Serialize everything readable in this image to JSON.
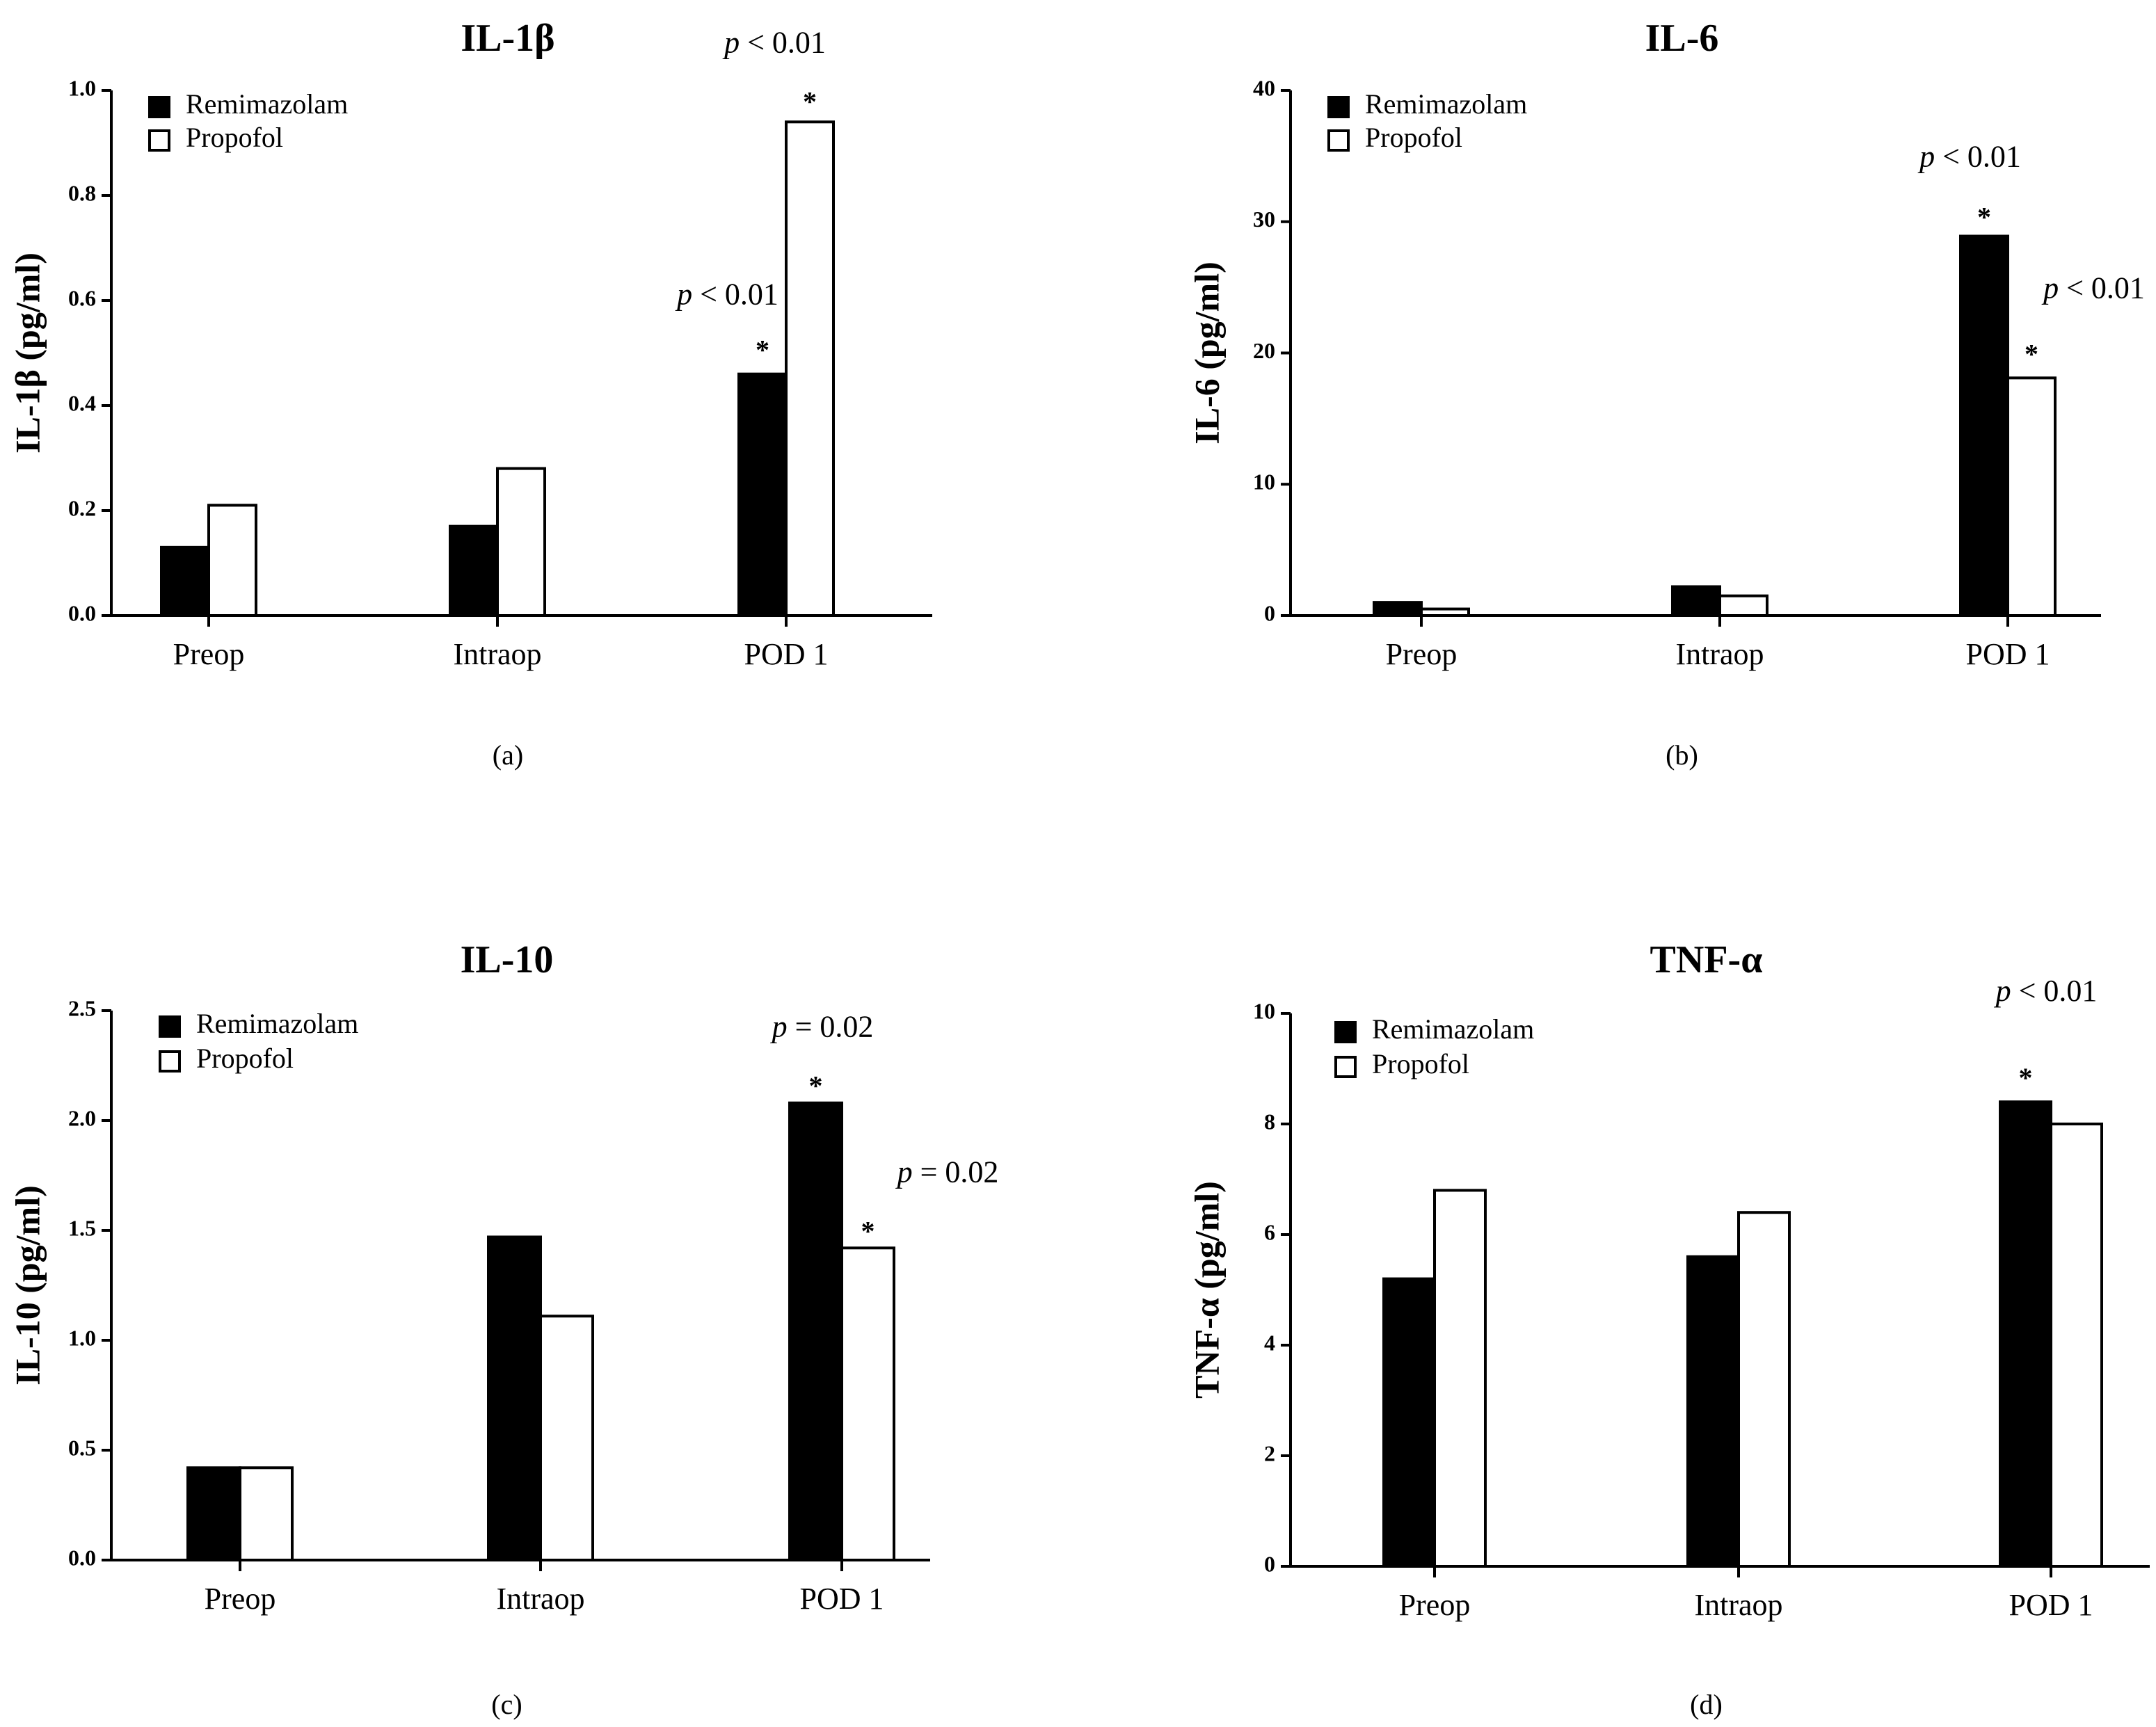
{
  "colors": {
    "remimazolam": "#000000",
    "propofol": "#ffffff",
    "axis": "#000000"
  },
  "chart_data": [
    {
      "type": "bar",
      "title": "IL-1β",
      "ylabel": "IL-1β (pg/ml)",
      "xlabel": "",
      "subfig_label": "(a)",
      "categories": [
        "Preop",
        "Intraop",
        "POD 1"
      ],
      "series": [
        {
          "name": "Remimazolam",
          "values": [
            0.13,
            0.17,
            0.46
          ]
        },
        {
          "name": "Propofol",
          "values": [
            0.21,
            0.28,
            0.94
          ]
        }
      ],
      "ylim": [
        0,
        1.0
      ],
      "yticks": [
        "0.0",
        "0.2",
        "0.4",
        "0.6",
        "0.8",
        "1.0"
      ],
      "annotations": [
        {
          "category": 2,
          "series": 0,
          "p_symbol": "p",
          "p_text": " < 0.01",
          "star": "*"
        },
        {
          "category": 2,
          "series": 1,
          "p_symbol": "p",
          "p_text": " < 0.01",
          "star": "*"
        }
      ]
    },
    {
      "type": "bar",
      "title": "IL-6",
      "ylabel": "IL-6 (pg/ml)",
      "xlabel": "",
      "subfig_label": "(b)",
      "categories": [
        "Preop",
        "Intraop",
        "POD 1"
      ],
      "series": [
        {
          "name": "Remimazolam",
          "values": [
            1.0,
            2.2,
            28.9
          ]
        },
        {
          "name": "Propofol",
          "values": [
            0.5,
            1.5,
            18.1
          ]
        }
      ],
      "ylim": [
        0,
        40
      ],
      "yticks": [
        "0",
        "10",
        "20",
        "30",
        "40"
      ],
      "annotations": [
        {
          "category": 2,
          "series": 0,
          "p_symbol": "p",
          "p_text": " < 0.01",
          "star": "*"
        },
        {
          "category": 2,
          "series": 1,
          "p_symbol": "p",
          "p_text": " < 0.01",
          "star": "*"
        }
      ]
    },
    {
      "type": "bar",
      "title": "IL-10",
      "ylabel": "IL-10 (pg/ml)",
      "xlabel": "",
      "subfig_label": "(c)",
      "categories": [
        "Preop",
        "Intraop",
        "POD 1"
      ],
      "series": [
        {
          "name": "Remimazolam",
          "values": [
            0.42,
            1.47,
            2.08
          ]
        },
        {
          "name": "Propofol",
          "values": [
            0.42,
            1.11,
            1.42
          ]
        }
      ],
      "ylim": [
        0,
        2.5
      ],
      "yticks": [
        "0.0",
        "0.5",
        "1.0",
        "1.5",
        "2.0",
        "2.5"
      ],
      "annotations": [
        {
          "category": 2,
          "series": 0,
          "p_symbol": "p",
          "p_text": " = 0.02",
          "star": "*"
        },
        {
          "category": 2,
          "series": 1,
          "p_symbol": "p",
          "p_text": " = 0.02",
          "star": "*"
        }
      ]
    },
    {
      "type": "bar",
      "title": "TNF-α",
      "ylabel": "TNF-α (pg/ml)",
      "xlabel": "",
      "subfig_label": "(d)",
      "categories": [
        "Preop",
        "Intraop",
        "POD 1"
      ],
      "series": [
        {
          "name": "Remimazolam",
          "values": [
            5.2,
            5.6,
            8.4
          ]
        },
        {
          "name": "Propofol",
          "values": [
            6.8,
            6.4,
            8.0
          ]
        }
      ],
      "ylim": [
        0,
        10
      ],
      "yticks": [
        "0",
        "2",
        "4",
        "6",
        "8",
        "10"
      ],
      "annotations": [
        {
          "category": 2,
          "series": 0,
          "p_symbol": "p",
          "p_text": " < 0.01",
          "star": "*"
        }
      ]
    }
  ]
}
